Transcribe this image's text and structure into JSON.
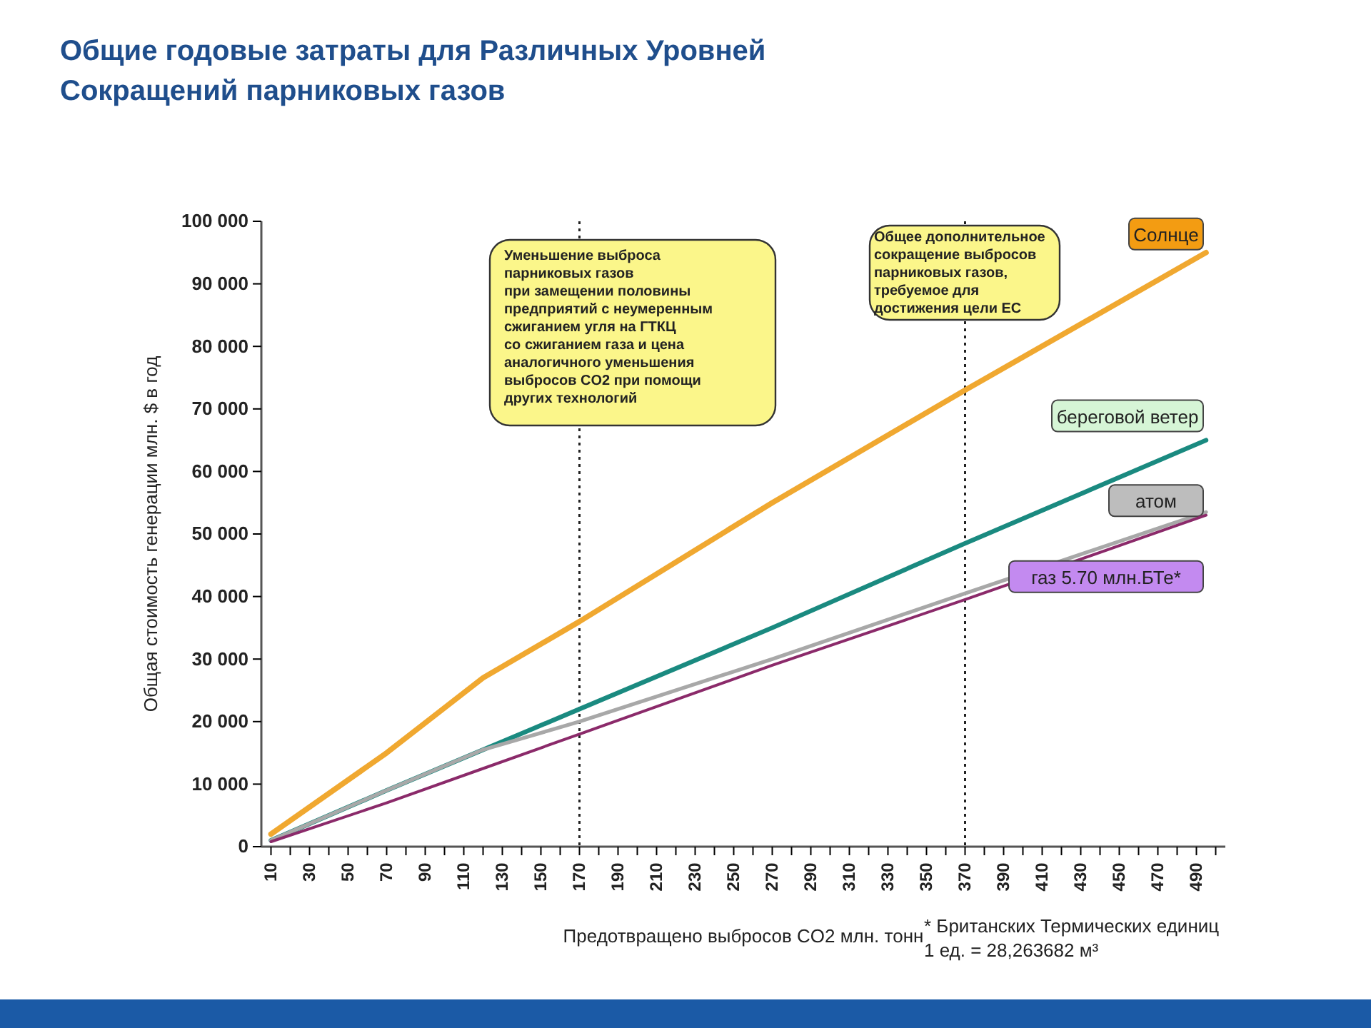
{
  "chart_data": {
    "type": "line",
    "title": "Общие годовые затраты для Различных Уровней\nСокращений парниковых газов",
    "xlabel": "Предотвращено выбросов CO2 млн. тонн",
    "ylabel": "Общая стоимость генерации млн. $ в год",
    "xlim": [
      5,
      505
    ],
    "ylim": [
      0,
      100000
    ],
    "xticks": [
      10,
      {
        "value": 20,
        "label": null
      },
      30,
      {
        "value": 40,
        "label": null
      },
      50,
      {
        "value": 60,
        "label": null
      },
      70,
      {
        "value": 80,
        "label": null
      },
      90,
      {
        "value": 100,
        "label": null
      },
      110,
      {
        "value": 120,
        "label": null
      },
      130,
      {
        "value": 140,
        "label": null
      },
      150,
      {
        "value": 160,
        "label": null
      },
      170,
      {
        "value": 180,
        "label": null
      },
      190,
      {
        "value": 200,
        "label": null
      },
      210,
      {
        "value": 220,
        "label": null
      },
      230,
      {
        "value": 240,
        "label": null
      },
      250,
      {
        "value": 260,
        "label": null
      },
      270,
      {
        "value": 280,
        "label": null
      },
      290,
      {
        "value": 300,
        "label": null
      },
      310,
      {
        "value": 320,
        "label": null
      },
      330,
      {
        "value": 340,
        "label": null
      },
      350,
      {
        "value": 360,
        "label": null
      },
      370,
      {
        "value": 380,
        "label": null
      },
      390,
      {
        "value": 400,
        "label": null
      },
      410,
      {
        "value": 420,
        "label": null
      },
      430,
      {
        "value": 440,
        "label": null
      },
      450,
      {
        "value": 460,
        "label": null
      },
      470,
      {
        "value": 480,
        "label": null
      },
      490,
      {
        "value": 500,
        "label": null
      }
    ],
    "yticks": [
      {
        "value": 0,
        "label": "0"
      },
      {
        "value": 10000,
        "label": "10 000"
      },
      {
        "value": 20000,
        "label": "20 000"
      },
      {
        "value": 30000,
        "label": "30 000"
      },
      {
        "value": 40000,
        "label": "40 000"
      },
      {
        "value": 50000,
        "label": "50 000"
      },
      {
        "value": 60000,
        "label": "60 000"
      },
      {
        "value": 70000,
        "label": "70 000"
      },
      {
        "value": 80000,
        "label": "80 000"
      },
      {
        "value": 90000,
        "label": "90 000"
      },
      {
        "value": 100000,
        "label": "100 000"
      }
    ],
    "x": [
      10,
      70,
      120,
      170,
      270,
      370,
      495
    ],
    "series": [
      {
        "name": "Солнце",
        "color": "#f0a830",
        "values": [
          2000,
          15000,
          27000,
          36000,
          55000,
          73000,
          95000
        ]
      },
      {
        "name": "береговой ветер",
        "color": "#1a8a80",
        "values": [
          1000,
          9000,
          15500,
          22000,
          35000,
          48500,
          65000
        ]
      },
      {
        "name": "атом",
        "color": "#a8a8a8",
        "values": [
          1000,
          9000,
          15500,
          20000,
          30000,
          40500,
          53500
        ]
      },
      {
        "name": "газ 5.70 млн.БТе*",
        "color": "#8b2a6a",
        "values": [
          800,
          7000,
          12500,
          18000,
          29000,
          39500,
          53000
        ]
      }
    ],
    "ref_lines": [
      {
        "axis": "x",
        "value": 170,
        "label": "Уменьшение выброса\nпарниковых газов\nпри замещении половины\nпредприятий с неумеренным\nсжиганием угля на ГТКЦ\nсо сжиганием газа и цена\nаналогичного уменьшения\nвыбросов CO2 при помощи\nдругих технологий",
        "line_style": "dotted"
      },
      {
        "axis": "x",
        "value": 370,
        "label": "Общее дополнительное\nсокращение выбросов\nпарниковых газов,\nтребуемое для\nдостижения цели ЕС",
        "line_style": "dotted"
      }
    ],
    "annotations": [
      "* Британских Термических единиц\n1 ед. = 28,263682 м³"
    ],
    "line_style": "solid",
    "marker": "none",
    "grid": false,
    "legend": false
  }
}
